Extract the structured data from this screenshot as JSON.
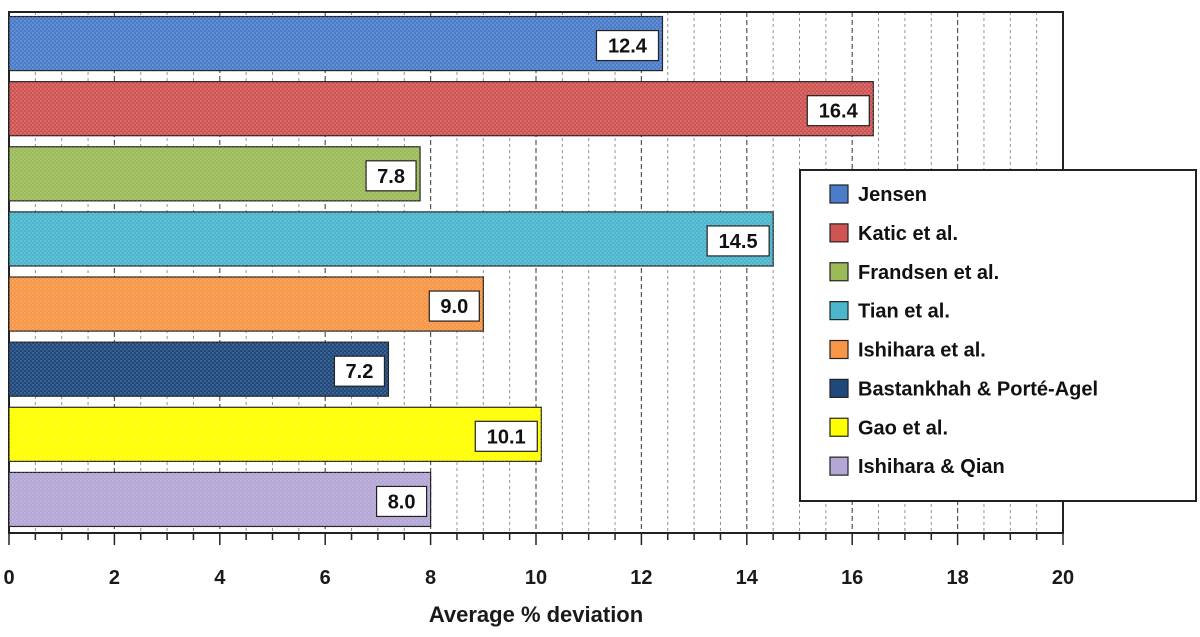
{
  "chart_data": {
    "type": "bar",
    "orientation": "horizontal",
    "xlabel": "Average % deviation",
    "ylabel": "",
    "xlim": [
      0,
      20
    ],
    "x_ticks": [
      "0",
      "2",
      "4",
      "6",
      "8",
      "10",
      "12",
      "14",
      "16",
      "18",
      "20"
    ],
    "grid": "vertical dashed",
    "legend_position": "right",
    "series": [
      {
        "name": "Jensen",
        "value": 12.4,
        "label": "12.4",
        "color": "#4a7cc9"
      },
      {
        "name": "Katic et al.",
        "value": 16.4,
        "label": "16.4",
        "color": "#cf5553"
      },
      {
        "name": "Frandsen et al.",
        "value": 7.8,
        "label": "7.8",
        "color": "#9bbb59"
      },
      {
        "name": "Tian et al.",
        "value": 14.5,
        "label": "14.5",
        "color": "#4cb7cc"
      },
      {
        "name": "Ishihara et al.",
        "value": 9.0,
        "label": "9.0",
        "color": "#f79646"
      },
      {
        "name": "Bastankhah & Porté-Agel",
        "value": 7.2,
        "label": "7.2",
        "color": "#1f497d"
      },
      {
        "name": "Gao et al.",
        "value": 10.1,
        "label": "10.1",
        "color": "#ffff00"
      },
      {
        "name": "Ishihara & Qian",
        "value": 8.0,
        "label": "8.0",
        "color": "#b4a7d6"
      }
    ]
  }
}
